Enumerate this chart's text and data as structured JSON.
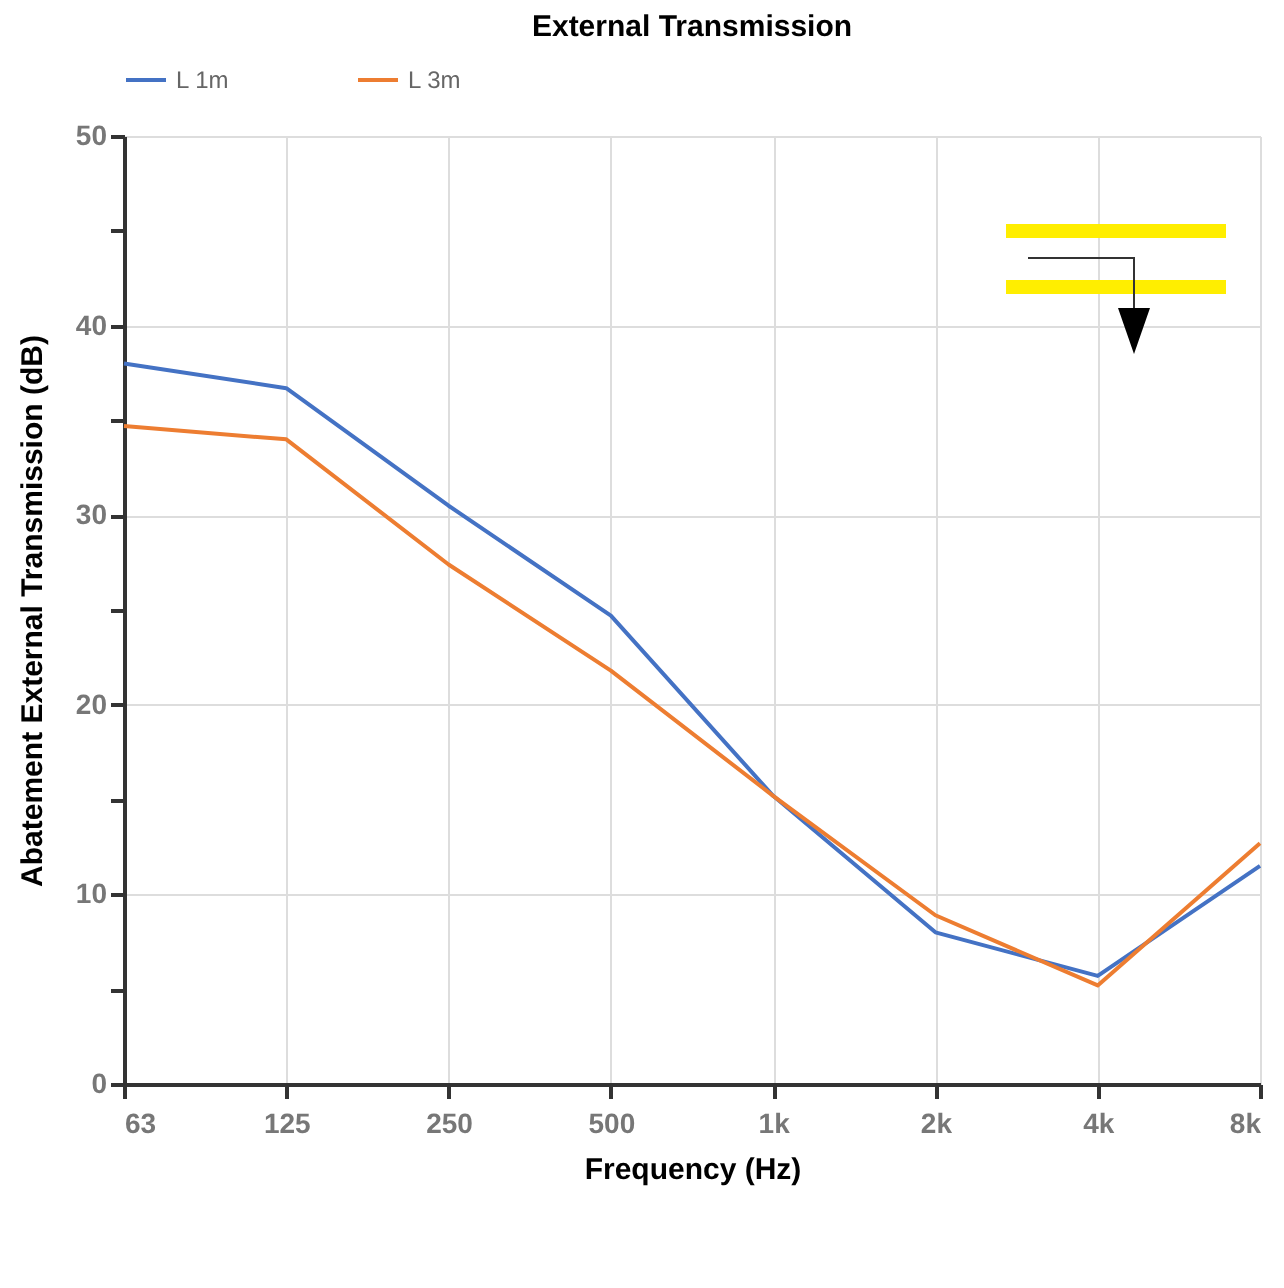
{
  "chart_data": {
    "type": "line",
    "title": "External Transmission",
    "xlabel": "Frequency (Hz)",
    "ylabel": "Abatement External Transmission (dB)",
    "categories": [
      "63",
      "125",
      "250",
      "500",
      "1k",
      "2k",
      "4k",
      "8k"
    ],
    "series": [
      {
        "name": "L 1m",
        "color": "#4472c4",
        "values": [
          38.0,
          36.7,
          30.5,
          24.7,
          15.2,
          8.0,
          5.7,
          11.5
        ]
      },
      {
        "name": "L 3m",
        "color": "#ed7d31",
        "values": [
          34.7,
          34.0,
          27.4,
          21.8,
          15.2,
          8.9,
          5.2,
          12.7
        ]
      }
    ],
    "ylim": [
      0,
      50
    ],
    "yticks": [
      0,
      {
        "value": 5,
        "label": null
      },
      10,
      {
        "value": 15,
        "label": null
      },
      20,
      {
        "value": 25,
        "label": null
      },
      30,
      {
        "value": 35,
        "label": null
      },
      40,
      {
        "value": 45,
        "label": null
      },
      50
    ],
    "grid": true,
    "legend": "top",
    "marker": "none",
    "line_style": "solid"
  }
}
